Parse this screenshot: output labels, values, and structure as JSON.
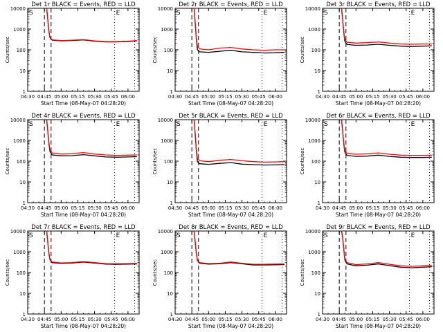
{
  "chart_data": [
    {
      "type": "line",
      "title": "Det 1r BLACK = Events, RED = LLD",
      "ylabel": "Counts/sec",
      "xlabel": "Start Time (08-May-07 04:28:20)",
      "x_ticks": [
        "04:30",
        "04:45",
        "05:00",
        "05:15",
        "05:30",
        "05:45",
        "06:00"
      ],
      "y_ticks": [
        "1",
        "10",
        "100",
        "1000",
        "10000"
      ],
      "y_scale": "log",
      "ylim": [
        1,
        10000
      ],
      "xlim": [
        "04:30",
        "06:10"
      ],
      "markers": [
        "S",
        "E"
      ],
      "vlines_dashed": [
        "04:45",
        "04:51"
      ],
      "vlines_dotted": [
        "05:48",
        "06:06"
      ],
      "series": [
        {
          "color": "#ff0000",
          "x": [
            "04:47",
            "04:48",
            "04:49",
            "04:50",
            "04:52",
            "05:00",
            "05:10",
            "05:20",
            "05:30",
            "05:40",
            "05:50",
            "06:00",
            "06:08"
          ],
          "values": [
            10000,
            3000,
            800,
            400,
            300,
            280,
            290,
            310,
            270,
            250,
            250,
            260,
            280
          ]
        },
        {
          "color": "#000000",
          "x": [
            "04:47",
            "04:48",
            "04:49",
            "04:50",
            "04:52",
            "05:00",
            "05:10",
            "05:20",
            "05:30",
            "05:40",
            "05:50",
            "06:00",
            "06:08"
          ],
          "values": [
            10000,
            3000,
            800,
            380,
            290,
            270,
            280,
            300,
            260,
            240,
            240,
            250,
            270
          ]
        }
      ]
    },
    {
      "type": "line",
      "title": "Det 2r BLACK = Events, RED = LLD",
      "ylabel": "Counts/sec",
      "xlabel": "Start Time (08-May-07 04:28:20)",
      "x_ticks": [
        "04:30",
        "04:45",
        "05:00",
        "05:15",
        "05:30",
        "05:45",
        "06:00"
      ],
      "y_ticks": [
        "1",
        "10",
        "100",
        "1000",
        "10000"
      ],
      "y_scale": "log",
      "ylim": [
        1,
        10000
      ],
      "xlim": [
        "04:30",
        "06:10"
      ],
      "markers": [
        "S",
        "E"
      ],
      "vlines_dashed": [
        "04:45",
        "04:51"
      ],
      "vlines_dotted": [
        "05:48",
        "06:06"
      ],
      "series": [
        {
          "color": "#ff0000",
          "x": [
            "04:47",
            "04:48",
            "04:49",
            "04:50",
            "04:52",
            "05:00",
            "05:10",
            "05:20",
            "05:30",
            "05:40",
            "05:50",
            "06:00",
            "06:08"
          ],
          "values": [
            10000,
            2000,
            400,
            150,
            110,
            100,
            120,
            130,
            110,
            100,
            95,
            100,
            100
          ]
        },
        {
          "color": "#000000",
          "x": [
            "04:47",
            "04:48",
            "04:49",
            "04:50",
            "04:52",
            "05:00",
            "05:10",
            "05:20",
            "05:30",
            "05:40",
            "05:50",
            "06:00",
            "06:08"
          ],
          "values": [
            10000,
            2000,
            350,
            100,
            80,
            75,
            85,
            95,
            80,
            75,
            70,
            72,
            75
          ]
        }
      ]
    },
    {
      "type": "line",
      "title": "Det 3r BLACK = Events, RED = LLD",
      "ylabel": "Counts/sec",
      "xlabel": "Start Time (08-May-07 04:28:20)",
      "x_ticks": [
        "04:30",
        "04:45",
        "05:00",
        "05:15",
        "05:30",
        "05:45",
        "06:00"
      ],
      "y_ticks": [
        "1",
        "10",
        "100",
        "1000",
        "10000"
      ],
      "y_scale": "log",
      "ylim": [
        1,
        10000
      ],
      "xlim": [
        "04:30",
        "06:10"
      ],
      "markers": [
        "S",
        "E"
      ],
      "vlines_dashed": [
        "04:45",
        "04:51"
      ],
      "vlines_dotted": [
        "05:48",
        "06:06"
      ],
      "series": [
        {
          "color": "#ff0000",
          "x": [
            "04:47",
            "04:48",
            "04:49",
            "04:50",
            "04:52",
            "05:00",
            "05:10",
            "05:20",
            "05:30",
            "05:40",
            "05:50",
            "06:00",
            "06:08"
          ],
          "values": [
            10000,
            3000,
            800,
            320,
            230,
            210,
            220,
            240,
            210,
            190,
            185,
            190,
            190
          ]
        },
        {
          "color": "#000000",
          "x": [
            "04:47",
            "04:48",
            "04:49",
            "04:50",
            "04:52",
            "05:00",
            "05:10",
            "05:20",
            "05:30",
            "05:40",
            "05:50",
            "06:00",
            "06:08"
          ],
          "values": [
            10000,
            3000,
            700,
            260,
            180,
            165,
            170,
            185,
            165,
            150,
            145,
            150,
            155
          ]
        }
      ]
    },
    {
      "type": "line",
      "title": "Det 4r BLACK = Events, RED = LLD",
      "ylabel": "Counts/sec",
      "xlabel": "Start Time (08-May-07 04:28:20)",
      "x_ticks": [
        "04:30",
        "04:45",
        "05:00",
        "05:15",
        "05:30",
        "05:45",
        "06:00"
      ],
      "y_ticks": [
        "1",
        "10",
        "100",
        "1000",
        "10000"
      ],
      "y_scale": "log",
      "ylim": [
        1,
        10000
      ],
      "xlim": [
        "04:30",
        "06:10"
      ],
      "markers": [
        "S",
        "E"
      ],
      "vlines_dashed": [
        "04:45",
        "04:51"
      ],
      "vlines_dotted": [
        "05:48",
        "06:06"
      ],
      "series": [
        {
          "color": "#ff0000",
          "x": [
            "04:47",
            "04:48",
            "04:49",
            "04:50",
            "04:52",
            "05:00",
            "05:10",
            "05:20",
            "05:30",
            "05:40",
            "05:50",
            "06:00",
            "06:08"
          ],
          "values": [
            10000,
            3000,
            800,
            350,
            250,
            220,
            230,
            260,
            220,
            200,
            190,
            195,
            200
          ]
        },
        {
          "color": "#000000",
          "x": [
            "04:47",
            "04:48",
            "04:49",
            "04:50",
            "04:52",
            "05:00",
            "05:10",
            "05:20",
            "05:30",
            "05:40",
            "05:50",
            "06:00",
            "06:08"
          ],
          "values": [
            10000,
            3000,
            700,
            290,
            200,
            180,
            185,
            205,
            180,
            160,
            155,
            160,
            165
          ]
        }
      ]
    },
    {
      "type": "line",
      "title": "Det 5r BLACK = Events, RED = LLD",
      "ylabel": "Counts/sec",
      "xlabel": "Start Time (08-May-07 04:28:20)",
      "x_ticks": [
        "04:30",
        "04:45",
        "05:00",
        "05:15",
        "05:30",
        "05:45",
        "06:00"
      ],
      "y_ticks": [
        "1",
        "10",
        "100",
        "1000",
        "10000"
      ],
      "y_scale": "log",
      "ylim": [
        1,
        10000
      ],
      "xlim": [
        "04:30",
        "06:10"
      ],
      "markers": [
        "S",
        "E"
      ],
      "vlines_dashed": [
        "04:45",
        "04:51"
      ],
      "vlines_dotted": [
        "05:48",
        "06:06"
      ],
      "series": [
        {
          "color": "#ff0000",
          "x": [
            "04:47",
            "04:48",
            "04:49",
            "04:50",
            "04:52",
            "05:00",
            "05:10",
            "05:20",
            "05:30",
            "05:40",
            "05:50",
            "06:00",
            "06:08"
          ],
          "values": [
            10000,
            2000,
            400,
            140,
            105,
            95,
            110,
            120,
            105,
            95,
            90,
            92,
            95
          ]
        },
        {
          "color": "#000000",
          "x": [
            "04:47",
            "04:48",
            "04:49",
            "04:50",
            "04:52",
            "05:00",
            "05:10",
            "05:20",
            "05:30",
            "05:40",
            "05:50",
            "06:00",
            "06:08"
          ],
          "values": [
            10000,
            2000,
            350,
            95,
            75,
            70,
            78,
            85,
            72,
            68,
            65,
            66,
            68
          ]
        }
      ]
    },
    {
      "type": "line",
      "title": "Det 6r BLACK = Events, RED = LLD",
      "ylabel": "Counts/sec",
      "xlabel": "Start Time (08-May-07 04:28:20)",
      "x_ticks": [
        "04:30",
        "04:45",
        "05:00",
        "05:15",
        "05:30",
        "05:45",
        "06:00"
      ],
      "y_ticks": [
        "1",
        "10",
        "100",
        "1000",
        "10000"
      ],
      "y_scale": "log",
      "ylim": [
        1,
        10000
      ],
      "xlim": [
        "04:30",
        "06:10"
      ],
      "markers": [
        "S",
        "E"
      ],
      "vlines_dashed": [
        "04:45",
        "04:51"
      ],
      "vlines_dotted": [
        "05:48",
        "06:06"
      ],
      "series": [
        {
          "color": "#ff0000",
          "x": [
            "04:47",
            "04:48",
            "04:49",
            "04:50",
            "04:52",
            "05:00",
            "05:10",
            "05:20",
            "05:30",
            "05:40",
            "05:50",
            "06:00",
            "06:08"
          ],
          "values": [
            10000,
            3000,
            800,
            330,
            240,
            215,
            225,
            250,
            215,
            195,
            190,
            190,
            195
          ]
        },
        {
          "color": "#000000",
          "x": [
            "04:47",
            "04:48",
            "04:49",
            "04:50",
            "04:52",
            "05:00",
            "05:10",
            "05:20",
            "05:30",
            "05:40",
            "05:50",
            "06:00",
            "06:08"
          ],
          "values": [
            10000,
            3000,
            700,
            270,
            190,
            170,
            175,
            195,
            170,
            155,
            150,
            150,
            155
          ]
        }
      ]
    },
    {
      "type": "line",
      "title": "Det 7r BLACK = Events, RED = LLD",
      "ylabel": "Counts/sec",
      "xlabel": "Start Time (08-May-07 04:28:20)",
      "x_ticks": [
        "04:30",
        "04:45",
        "05:00",
        "05:15",
        "05:30",
        "05:45",
        "06:00"
      ],
      "y_ticks": [
        "1",
        "10",
        "100",
        "1000",
        "10000"
      ],
      "y_scale": "log",
      "ylim": [
        1,
        10000
      ],
      "xlim": [
        "04:30",
        "06:10"
      ],
      "markers": [
        "S",
        "E"
      ],
      "vlines_dashed": [
        "04:45",
        "04:51"
      ],
      "vlines_dotted": [
        "05:48",
        "06:06"
      ],
      "series": [
        {
          "color": "#ff0000",
          "x": [
            "04:47",
            "04:48",
            "04:49",
            "04:50",
            "04:52",
            "05:00",
            "05:10",
            "05:20",
            "05:30",
            "05:40",
            "05:50",
            "06:00",
            "06:08"
          ],
          "values": [
            10000,
            3000,
            900,
            420,
            320,
            290,
            300,
            340,
            300,
            270,
            265,
            270,
            275
          ]
        },
        {
          "color": "#000000",
          "x": [
            "04:47",
            "04:48",
            "04:49",
            "04:50",
            "04:52",
            "05:00",
            "05:10",
            "05:20",
            "05:30",
            "05:40",
            "05:50",
            "06:00",
            "06:08"
          ],
          "values": [
            10000,
            3000,
            850,
            400,
            300,
            275,
            285,
            320,
            285,
            255,
            250,
            255,
            260
          ]
        }
      ]
    },
    {
      "type": "line",
      "title": "Det 8r BLACK = Events, RED = LLD",
      "ylabel": "Counts/sec",
      "xlabel": "Start Time (08-May-07 04:28:20)",
      "x_ticks": [
        "04:30",
        "04:45",
        "05:00",
        "05:15",
        "05:30",
        "05:45",
        "06:00"
      ],
      "y_ticks": [
        "1",
        "10",
        "100",
        "1000",
        "10000"
      ],
      "y_scale": "log",
      "ylim": [
        1,
        10000
      ],
      "xlim": [
        "04:30",
        "06:10"
      ],
      "markers": [
        "S",
        "E"
      ],
      "vlines_dashed": [
        "04:45",
        "04:51"
      ],
      "vlines_dotted": [
        "05:48",
        "06:06"
      ],
      "series": [
        {
          "color": "#ff0000",
          "x": [
            "04:47",
            "04:48",
            "04:49",
            "04:50",
            "04:52",
            "05:00",
            "05:10",
            "05:20",
            "05:30",
            "05:40",
            "05:50",
            "06:00",
            "06:08"
          ],
          "values": [
            10000,
            3000,
            900,
            400,
            300,
            270,
            280,
            320,
            280,
            250,
            250,
            255,
            260
          ]
        },
        {
          "color": "#000000",
          "x": [
            "04:47",
            "04:48",
            "04:49",
            "04:50",
            "04:52",
            "05:00",
            "05:10",
            "05:20",
            "05:30",
            "05:40",
            "05:50",
            "06:00",
            "06:08"
          ],
          "values": [
            10000,
            3000,
            850,
            380,
            280,
            255,
            265,
            300,
            265,
            230,
            230,
            235,
            240
          ]
        }
      ]
    },
    {
      "type": "line",
      "title": "Det 9r BLACK = Events, RED = LLD",
      "ylabel": "Counts/sec",
      "xlabel": "Start Time (08-May-07 04:28:20)",
      "x_ticks": [
        "04:30",
        "04:45",
        "05:00",
        "05:15",
        "05:30",
        "05:45",
        "06:00"
      ],
      "y_ticks": [
        "1",
        "10",
        "100",
        "1000",
        "10000"
      ],
      "y_scale": "log",
      "ylim": [
        1,
        10000
      ],
      "xlim": [
        "04:30",
        "06:10"
      ],
      "markers": [
        "S",
        "E"
      ],
      "vlines_dashed": [
        "04:45",
        "04:51"
      ],
      "vlines_dotted": [
        "05:48",
        "06:06"
      ],
      "series": [
        {
          "color": "#ff0000",
          "x": [
            "04:47",
            "04:48",
            "04:49",
            "04:50",
            "04:52",
            "05:00",
            "05:10",
            "05:20",
            "05:30",
            "05:40",
            "05:50",
            "06:00",
            "06:08"
          ],
          "values": [
            10000,
            5000,
            1500,
            450,
            300,
            240,
            260,
            300,
            250,
            210,
            200,
            210,
            220
          ]
        },
        {
          "color": "#000000",
          "x": [
            "04:47",
            "04:48",
            "04:49",
            "04:50",
            "04:52",
            "05:00",
            "05:10",
            "05:20",
            "05:30",
            "05:40",
            "05:50",
            "06:00",
            "06:08"
          ],
          "values": [
            10000,
            5000,
            1400,
            400,
            260,
            210,
            225,
            260,
            215,
            180,
            170,
            180,
            190
          ]
        }
      ]
    }
  ]
}
